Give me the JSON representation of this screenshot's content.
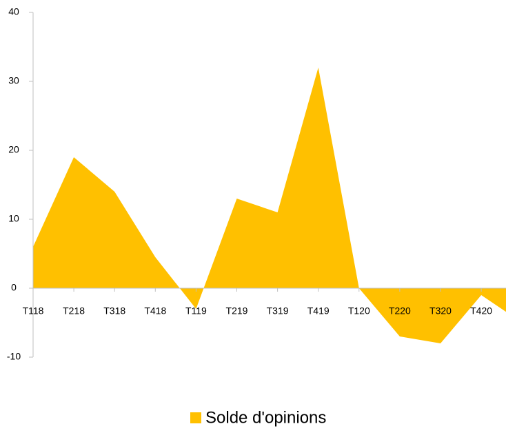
{
  "chart_data": {
    "type": "area",
    "categories": [
      "T118",
      "T218",
      "T318",
      "T418",
      "T119",
      "T219",
      "T319",
      "T419",
      "T120",
      "T220",
      "T320",
      "T420",
      null
    ],
    "series": [
      {
        "name": "Solde d'opinions",
        "color": "#ffc000",
        "values": [
          6,
          19,
          14,
          4.5,
          -3,
          13,
          11,
          32,
          0,
          -7,
          -8,
          -1,
          -5
        ]
      }
    ],
    "ylim": [
      -10,
      40
    ],
    "yticks": [
      -10,
      0,
      10,
      20,
      30,
      40
    ],
    "legend": "bottom"
  }
}
